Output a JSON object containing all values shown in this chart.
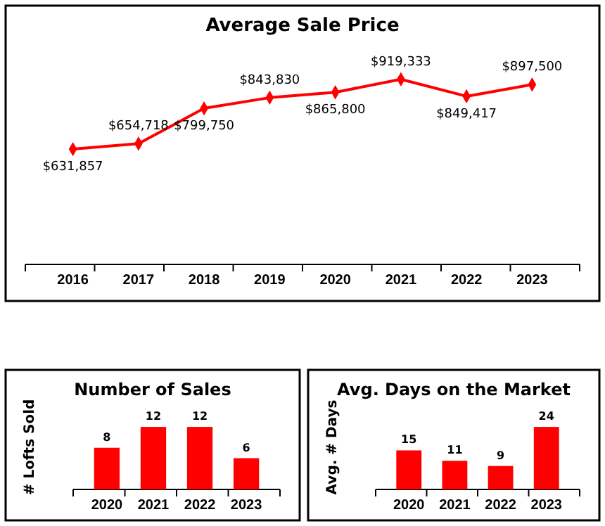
{
  "chart_data": [
    {
      "type": "line",
      "title": "Average Sale Price",
      "categories": [
        "2016",
        "2017",
        "2018",
        "2019",
        "2020",
        "2021",
        "2022",
        "2023"
      ],
      "series": [
        {
          "color": "#ff0000",
          "values": [
            631857,
            654718,
            799750,
            843830,
            865800,
            919333,
            849417,
            897500
          ],
          "value_labels": [
            "$631,857",
            "$654,718",
            "$799,750",
            "$843,830",
            "$865,800",
            "$919,333",
            "$849,417",
            "$897,500"
          ]
        }
      ],
      "tick_labels": "x",
      "marker": "diamond"
    },
    {
      "type": "bar",
      "title": "Number of Sales",
      "ylabel": "# Lofts Sold",
      "categories": [
        "2020",
        "2021",
        "2022",
        "2023"
      ],
      "series": [
        {
          "color": "#ff0000",
          "values": [
            8,
            12,
            12,
            6
          ]
        }
      ],
      "data_labels": true,
      "tick_labels": "x"
    },
    {
      "type": "bar",
      "title": "Avg. Days on the Market",
      "ylabel": "Avg. # Days",
      "categories": [
        "2020",
        "2021",
        "2022",
        "2023"
      ],
      "series": [
        {
          "color": "#ff0000",
          "values": [
            15,
            11,
            9,
            24
          ]
        }
      ],
      "data_labels": true,
      "tick_labels": "x"
    }
  ]
}
